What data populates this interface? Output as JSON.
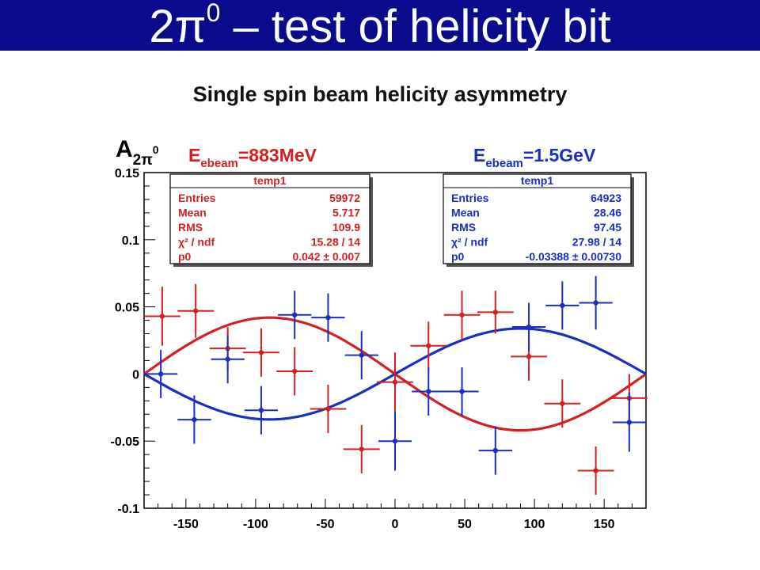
{
  "title": {
    "prefix": "2π",
    "superscript": "0",
    "suffix": " – test of helicity bit"
  },
  "subtitle": "Single spin beam helicity asymmetry",
  "colors": {
    "title_bar": "#0a0a8c",
    "red": "#d42020",
    "blue": "#1a2fbf"
  },
  "chart_data": {
    "type": "scatter",
    "ylabel_main": "A",
    "ylabel_sub": "2π",
    "ylabel_sup": "0",
    "xlim": [
      -180,
      180
    ],
    "ylim": [
      -0.1,
      0.15
    ],
    "xticks": [
      -150,
      -100,
      -50,
      0,
      50,
      100,
      150
    ],
    "yticks": [
      -0.1,
      -0.05,
      0,
      0.05,
      0.1,
      0.15
    ],
    "ytick_labels": [
      "-0.1",
      "-0.05",
      "0",
      "0.05",
      "0.1",
      "0.15"
    ],
    "series": [
      {
        "name": "883MeV",
        "color": "red",
        "label_main": "E",
        "label_sub": "ebeam",
        "label_value": "=883MeV",
        "fit_amplitude": 0.042,
        "fit_phase_sign": -1,
        "points": [
          {
            "x": -167,
            "y": 0.043,
            "xerr": 13,
            "yerr": 0.022
          },
          {
            "x": -143,
            "y": 0.047,
            "xerr": 13,
            "yerr": 0.02
          },
          {
            "x": -120,
            "y": 0.019,
            "xerr": 13,
            "yerr": 0.016
          },
          {
            "x": -96,
            "y": 0.016,
            "xerr": 13,
            "yerr": 0.018
          },
          {
            "x": -72,
            "y": 0.002,
            "xerr": 13,
            "yerr": 0.018
          },
          {
            "x": -48,
            "y": -0.026,
            "xerr": 13,
            "yerr": 0.018
          },
          {
            "x": -24,
            "y": -0.056,
            "xerr": 13,
            "yerr": 0.018
          },
          {
            "x": 0,
            "y": -0.006,
            "xerr": 13,
            "yerr": 0.022
          },
          {
            "x": 24,
            "y": 0.021,
            "xerr": 13,
            "yerr": 0.018
          },
          {
            "x": 48,
            "y": 0.044,
            "xerr": 13,
            "yerr": 0.018
          },
          {
            "x": 72,
            "y": 0.046,
            "xerr": 13,
            "yerr": 0.016
          },
          {
            "x": 96,
            "y": 0.013,
            "xerr": 13,
            "yerr": 0.018
          },
          {
            "x": 120,
            "y": -0.022,
            "xerr": 13,
            "yerr": 0.018
          },
          {
            "x": 144,
            "y": -0.072,
            "xerr": 13,
            "yerr": 0.018
          },
          {
            "x": 168,
            "y": -0.018,
            "xerr": 13,
            "yerr": 0.018
          }
        ],
        "stats": {
          "header": "temp1",
          "rows": [
            {
              "label": "Entries",
              "value": "59972"
            },
            {
              "label": "Mean",
              "value": "5.717"
            },
            {
              "label": "RMS",
              "value": "109.9"
            },
            {
              "label": "χ² / ndf",
              "value": "15.28 / 14"
            },
            {
              "label": "p0",
              "value": "0.042 ± 0.007"
            }
          ]
        }
      },
      {
        "name": "1.5GeV",
        "color": "blue",
        "label_main": "E",
        "label_sub": "ebeam",
        "label_value": "=1.5GeV",
        "fit_amplitude": 0.03388,
        "fit_phase_sign": 1,
        "points": [
          {
            "x": -168,
            "y": 0.0,
            "xerr": 12,
            "yerr": 0.018
          },
          {
            "x": -144,
            "y": -0.034,
            "xerr": 12,
            "yerr": 0.018
          },
          {
            "x": -120,
            "y": 0.011,
            "xerr": 12,
            "yerr": 0.018
          },
          {
            "x": -96,
            "y": -0.027,
            "xerr": 12,
            "yerr": 0.018
          },
          {
            "x": -72,
            "y": 0.044,
            "xerr": 12,
            "yerr": 0.018
          },
          {
            "x": -48,
            "y": 0.042,
            "xerr": 12,
            "yerr": 0.018
          },
          {
            "x": -24,
            "y": 0.014,
            "xerr": 12,
            "yerr": 0.018
          },
          {
            "x": 0,
            "y": -0.05,
            "xerr": 12,
            "yerr": 0.022
          },
          {
            "x": 24,
            "y": -0.013,
            "xerr": 12,
            "yerr": 0.018
          },
          {
            "x": 48,
            "y": -0.013,
            "xerr": 12,
            "yerr": 0.018
          },
          {
            "x": 72,
            "y": -0.057,
            "xerr": 12,
            "yerr": 0.018
          },
          {
            "x": 96,
            "y": 0.035,
            "xerr": 12,
            "yerr": 0.018
          },
          {
            "x": 120,
            "y": 0.051,
            "xerr": 12,
            "yerr": 0.018
          },
          {
            "x": 144,
            "y": 0.053,
            "xerr": 12,
            "yerr": 0.02
          },
          {
            "x": 168,
            "y": -0.036,
            "xerr": 12,
            "yerr": 0.022
          }
        ],
        "stats": {
          "header": "temp1",
          "rows": [
            {
              "label": "Entries",
              "value": "64923"
            },
            {
              "label": "Mean",
              "value": "28.46"
            },
            {
              "label": "RMS",
              "value": "97.45"
            },
            {
              "label": "χ² / ndf",
              "value": "27.98 / 14"
            },
            {
              "label": "p0",
              "value": "-0.03388 ± 0.00730"
            }
          ]
        }
      }
    ]
  }
}
